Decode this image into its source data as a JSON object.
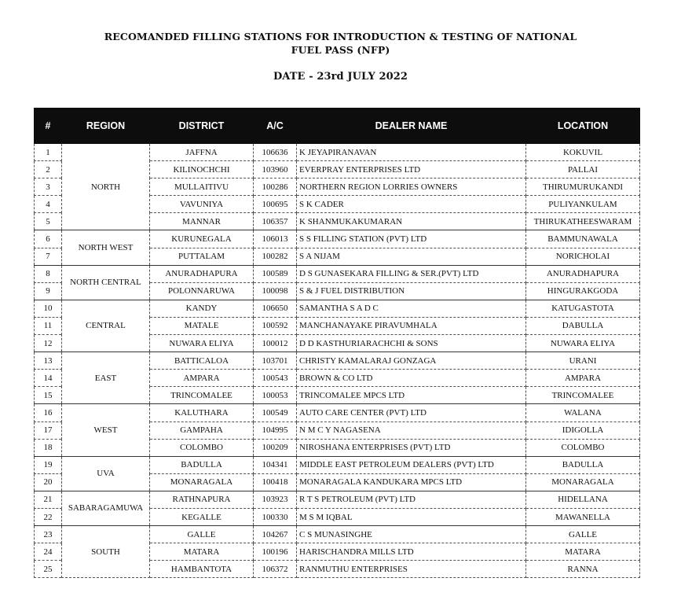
{
  "title_line1": "RECOMANDED FILLING STATIONS FOR INTRODUCTION & TESTING OF NATIONAL",
  "title_line2": "FUEL PASS (NFP)",
  "date": "DATE - 23rd JULY 2022",
  "headers": [
    "#",
    "REGION",
    "DISTRICT",
    "A/C",
    "DEALER NAME",
    "LOCATION"
  ],
  "regions": [
    {
      "name": "NORTH",
      "rows": [
        {
          "no": "1",
          "district": "JAFFNA",
          "ac": "106636",
          "dealer": "K JEYAPIRANAVAN",
          "location": "KOKUVIL"
        },
        {
          "no": "2",
          "district": "KILINOCHCHI",
          "ac": "103960",
          "dealer": "EVERPRAY ENTERPRISES LTD",
          "location": "PALLAI"
        },
        {
          "no": "3",
          "district": "MULLAITIVU",
          "ac": "100286",
          "dealer": "NORTHERN REGION LORRIES OWNERS",
          "location": "THIRUMURUKANDI"
        },
        {
          "no": "4",
          "district": "VAVUNIYA",
          "ac": "100695",
          "dealer": "S K CADER",
          "location": "PULIYANKULAM"
        },
        {
          "no": "5",
          "district": "MANNAR",
          "ac": "106357",
          "dealer": "K SHANMUKAKUMARAN",
          "location": "THIRUKATHEESWARAM"
        }
      ]
    },
    {
      "name": "NORTH WEST",
      "rows": [
        {
          "no": "6",
          "district": "KURUNEGALA",
          "ac": "106013",
          "dealer": "S S FILLING STATION (PVT) LTD",
          "location": "BAMMUNAWALA"
        },
        {
          "no": "7",
          "district": "PUTTALAM",
          "ac": "100282",
          "dealer": "S A NIJAM",
          "location": "NORICHOLAI"
        }
      ]
    },
    {
      "name": "NORTH CENTRAL",
      "rows": [
        {
          "no": "8",
          "district": "ANURADHAPURA",
          "ac": "100589",
          "dealer": "D S GUNASEKARA FILLING & SER.(PVT) LTD",
          "location": "ANURADHAPURA"
        },
        {
          "no": "9",
          "district": "POLONNARUWA",
          "ac": "100098",
          "dealer": "S & J FUEL DISTRIBUTION",
          "location": "HINGURAKGODA"
        }
      ]
    },
    {
      "name": "CENTRAL",
      "rows": [
        {
          "no": "10",
          "district": "KANDY",
          "ac": "106650",
          "dealer": "SAMANTHA S A D C",
          "location": "KATUGASTOTA"
        },
        {
          "no": "11",
          "district": "MATALE",
          "ac": "100592",
          "dealer": "MANCHANAYAKE PIRAVUMHALA",
          "location": "DABULLA"
        },
        {
          "no": "12",
          "district": "NUWARA ELIYA",
          "ac": "100012",
          "dealer": "D D KASTHURIARACHCHI & SONS",
          "location": "NUWARA ELIYA"
        }
      ]
    },
    {
      "name": "EAST",
      "rows": [
        {
          "no": "13",
          "district": "BATTICALOA",
          "ac": "103701",
          "dealer": "CHRISTY KAMALARAJ GONZAGA",
          "location": "URANI"
        },
        {
          "no": "14",
          "district": "AMPARA",
          "ac": "100543",
          "dealer": "BROWN & CO LTD",
          "location": "AMPARA"
        },
        {
          "no": "15",
          "district": "TRINCOMALEE",
          "ac": "100053",
          "dealer": "TRINCOMALEE MPCS LTD",
          "location": "TRINCOMALEE"
        }
      ]
    },
    {
      "name": "WEST",
      "rows": [
        {
          "no": "16",
          "district": "KALUTHARA",
          "ac": "100549",
          "dealer": "AUTO CARE CENTER (PVT) LTD",
          "location": "WALANA"
        },
        {
          "no": "17",
          "district": "GAMPAHA",
          "ac": "104995",
          "dealer": "N M C Y NAGASENA",
          "location": "IDIGOLLA"
        },
        {
          "no": "18",
          "district": "COLOMBO",
          "ac": "100209",
          "dealer": "NIROSHANA ENTERPRISES (PVT) LTD",
          "location": "COLOMBO"
        }
      ]
    },
    {
      "name": "UVA",
      "rows": [
        {
          "no": "19",
          "district": "BADULLA",
          "ac": "104341",
          "dealer": "MIDDLE EAST PETROLEUM DEALERS (PVT) LTD",
          "location": "BADULLA"
        },
        {
          "no": "20",
          "district": "MONARAGALA",
          "ac": "100418",
          "dealer": "MONARAGALA KANDUKARA MPCS LTD",
          "location": "MONARAGALA"
        }
      ]
    },
    {
      "name": "SABARAGAMUWA",
      "rows": [
        {
          "no": "21",
          "district": "RATHNAPURA",
          "ac": "103923",
          "dealer": "R T S PETROLEUM (PVT) LTD",
          "location": "HIDELLANA"
        },
        {
          "no": "22",
          "district": "KEGALLE",
          "ac": "100330",
          "dealer": "M S M IQBAL",
          "location": "MAWANELLA"
        }
      ]
    },
    {
      "name": "SOUTH",
      "rows": [
        {
          "no": "23",
          "district": "GALLE",
          "ac": "104267",
          "dealer": "C S MUNASINGHE",
          "location": "GALLE"
        },
        {
          "no": "24",
          "district": "MATARA",
          "ac": "100196",
          "dealer": "HARISCHANDRA MILLS LTD",
          "location": "MATARA"
        },
        {
          "no": "25",
          "district": "HAMBANTOTA",
          "ac": "106372",
          "dealer": "RANMUTHU ENTERPRISES",
          "location": "RANNA"
        }
      ]
    }
  ]
}
